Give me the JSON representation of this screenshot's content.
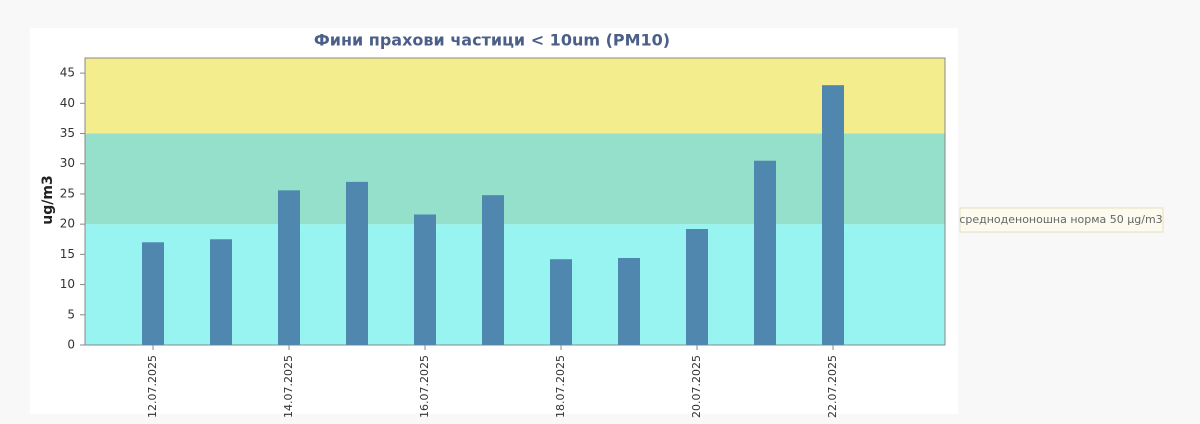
{
  "chart_data": {
    "type": "bar",
    "title": "Фини прахови частици < 10um (PM10)",
    "y_label": "ug/m3",
    "categories": [
      "12.07.2025",
      null,
      "14.07.2025",
      null,
      "16.07.2025",
      null,
      "18.07.2025",
      null,
      "20.07.2025",
      null,
      "22.07.2025"
    ],
    "values": [
      17,
      17.5,
      25.6,
      27,
      21.6,
      24.8,
      14.2,
      14.4,
      19.2,
      30.5,
      43
    ],
    "color": "#5087ae",
    "ylim": [
      0,
      47.5
    ],
    "yticks": [
      0,
      5,
      10,
      15,
      20,
      25,
      30,
      35,
      40,
      45
    ],
    "bands": [
      {
        "from": 0,
        "to": 20,
        "color": "#97f4f0"
      },
      {
        "from": 20,
        "to": 35,
        "color": "#95e0cb"
      },
      {
        "from": 35,
        "to": 47.5,
        "color": "#f3ed8d"
      }
    ],
    "legend": "средноденоношна норма 50 µg/m3"
  }
}
